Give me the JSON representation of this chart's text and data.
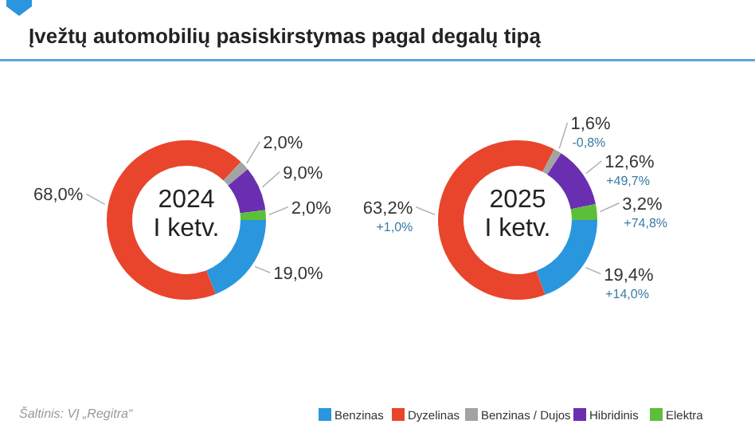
{
  "chart_data": {
    "type": "donut",
    "title": "Įvežtų automobilių pasiskirstymas pagal degalų tipą",
    "categories": [
      "Benzinas",
      "Dyzelinas",
      "Benzinas / Dujos",
      "Hibridinis",
      "Elektra"
    ],
    "colors": [
      "#2a96de",
      "#e8452c",
      "#a3a3a3",
      "#6a2fb0",
      "#5bbf3a"
    ],
    "legend": "bottom",
    "series": [
      {
        "name": "2024 I ketv.",
        "values": [
          19.0,
          68.0,
          2.0,
          9.0,
          2.0
        ],
        "value_labels": [
          "19,0%",
          "68,0%",
          "2,0%",
          "9,0%",
          "2,0%"
        ]
      },
      {
        "name": "2025 I ketv.",
        "values": [
          19.4,
          63.2,
          1.6,
          12.6,
          3.2
        ],
        "value_labels": [
          "19,4%",
          "63,2%",
          "1,6%",
          "12,6%",
          "3,2%"
        ]
      }
    ],
    "annotations": [
      "Šaltinis: VĮ „Regitra“",
      {
        "text": "+14,0%",
        "x": "Benzinas"
      },
      {
        "text": "+1,0%",
        "x": "Dyzelinas"
      },
      {
        "text": "-0,8%",
        "x": "Benzinas / Dujos"
      },
      {
        "text": "+49,7%",
        "x": "Hibridinis"
      },
      {
        "text": "+74,8%",
        "x": "Elektra"
      }
    ]
  }
}
